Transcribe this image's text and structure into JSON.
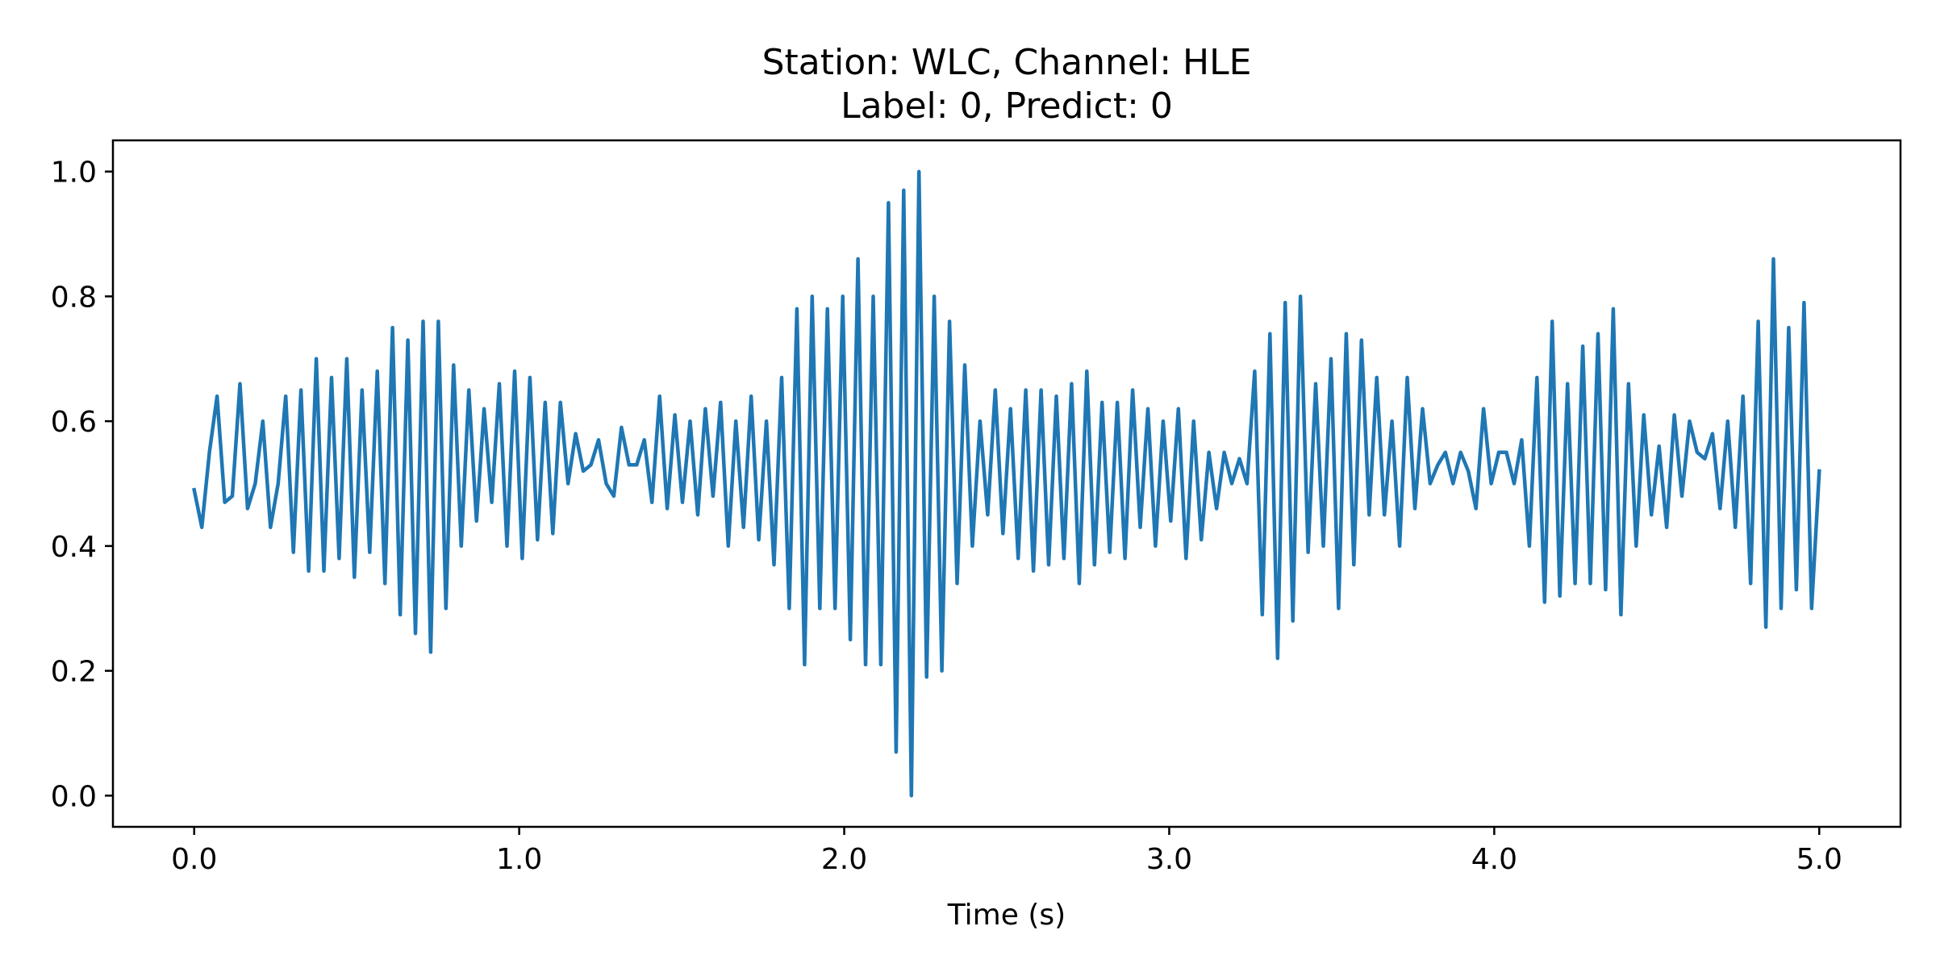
{
  "chart_data": {
    "type": "line",
    "title_lines": [
      "Station: WLC, Channel: HLE",
      "Label: 0, Predict: 0"
    ],
    "xlabel": "Time (s)",
    "ylabel": "",
    "xlim": [
      -0.25,
      5.25
    ],
    "ylim": [
      -0.05,
      1.05
    ],
    "xticks": [
      0.0,
      1.0,
      2.0,
      3.0,
      4.0,
      5.0
    ],
    "xtick_labels": [
      "0.0",
      "1.0",
      "2.0",
      "3.0",
      "4.0",
      "5.0"
    ],
    "yticks": [
      0.0,
      0.2,
      0.4,
      0.6,
      0.8,
      1.0
    ],
    "ytick_labels": [
      "0.0",
      "0.2",
      "0.4",
      "0.6",
      "0.8",
      "1.0"
    ],
    "grid": false,
    "legend": "none",
    "series": [
      {
        "color": "#1f77b4",
        "x_start": 0.0,
        "x_end": 5.0,
        "values": [
          0.49,
          0.43,
          0.55,
          0.64,
          0.47,
          0.48,
          0.66,
          0.46,
          0.5,
          0.6,
          0.43,
          0.5,
          0.64,
          0.39,
          0.65,
          0.36,
          0.7,
          0.36,
          0.67,
          0.38,
          0.7,
          0.35,
          0.65,
          0.39,
          0.68,
          0.34,
          0.75,
          0.29,
          0.73,
          0.26,
          0.76,
          0.23,
          0.76,
          0.3,
          0.69,
          0.4,
          0.65,
          0.44,
          0.62,
          0.47,
          0.66,
          0.4,
          0.68,
          0.38,
          0.67,
          0.41,
          0.63,
          0.42,
          0.63,
          0.5,
          0.58,
          0.52,
          0.53,
          0.57,
          0.5,
          0.48,
          0.59,
          0.53,
          0.53,
          0.57,
          0.47,
          0.64,
          0.46,
          0.61,
          0.47,
          0.6,
          0.45,
          0.62,
          0.48,
          0.63,
          0.4,
          0.6,
          0.43,
          0.64,
          0.41,
          0.6,
          0.37,
          0.67,
          0.3,
          0.78,
          0.21,
          0.8,
          0.3,
          0.78,
          0.3,
          0.8,
          0.25,
          0.86,
          0.21,
          0.8,
          0.21,
          0.95,
          0.07,
          0.97,
          0.0,
          1.0,
          0.19,
          0.8,
          0.2,
          0.76,
          0.34,
          0.69,
          0.4,
          0.6,
          0.45,
          0.65,
          0.42,
          0.62,
          0.38,
          0.65,
          0.36,
          0.65,
          0.37,
          0.64,
          0.38,
          0.66,
          0.34,
          0.68,
          0.37,
          0.63,
          0.39,
          0.63,
          0.38,
          0.65,
          0.43,
          0.62,
          0.4,
          0.6,
          0.44,
          0.62,
          0.38,
          0.6,
          0.41,
          0.55,
          0.46,
          0.55,
          0.5,
          0.54,
          0.5,
          0.68,
          0.29,
          0.74,
          0.22,
          0.79,
          0.28,
          0.8,
          0.39,
          0.66,
          0.4,
          0.7,
          0.3,
          0.74,
          0.37,
          0.73,
          0.45,
          0.67,
          0.45,
          0.6,
          0.4,
          0.67,
          0.46,
          0.62,
          0.5,
          0.53,
          0.55,
          0.5,
          0.55,
          0.52,
          0.46,
          0.62,
          0.5,
          0.55,
          0.55,
          0.5,
          0.57,
          0.4,
          0.67,
          0.31,
          0.76,
          0.32,
          0.66,
          0.34,
          0.72,
          0.34,
          0.74,
          0.33,
          0.78,
          0.29,
          0.66,
          0.4,
          0.61,
          0.45,
          0.56,
          0.43,
          0.61,
          0.48,
          0.6,
          0.55,
          0.54,
          0.58,
          0.46,
          0.6,
          0.43,
          0.64,
          0.34,
          0.76,
          0.27,
          0.86,
          0.3,
          0.75,
          0.33,
          0.79,
          0.3,
          0.52
        ]
      }
    ]
  }
}
